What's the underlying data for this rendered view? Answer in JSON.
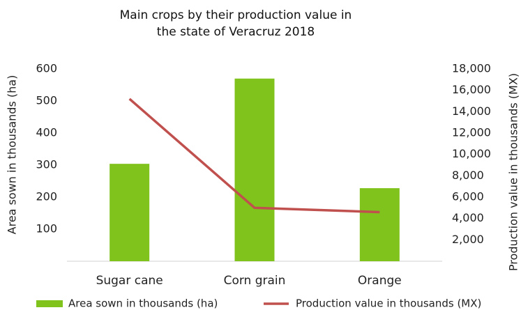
{
  "chart_data": {
    "type": "bar-line",
    "title": "Main crops by their production value in the state of Veracruz 2018",
    "categories": [
      "Sugar cane",
      "Corn grain",
      "Orange"
    ],
    "ylabel": "Area sown in thousands (ha)",
    "y2label": "Production value in thousands (MX)",
    "series": [
      {
        "name": "Area sown in thousands (ha)",
        "type": "bar",
        "color": "#7fc31c",
        "values": [
          304,
          570,
          228
        ]
      },
      {
        "name": "Production value in thousands (MX)",
        "type": "line",
        "axis": "y2",
        "color": "#c0504d",
        "values": [
          15200,
          5000,
          4600
        ]
      }
    ],
    "ylim": [
      0,
      600
    ],
    "yticks": [
      100,
      200,
      300,
      400,
      500,
      600
    ],
    "y2lim": [
      0,
      18000
    ],
    "y2ticks": [
      {
        "value": 2000,
        "label": "2,000"
      },
      {
        "value": 4000,
        "label": "4,000"
      },
      {
        "value": 6000,
        "label": "6,000"
      },
      {
        "value": 8000,
        "label": "8,000"
      },
      {
        "value": 10000,
        "label": "10,000"
      },
      {
        "value": 12000,
        "label": "12,000"
      },
      {
        "value": 14000,
        "label": "14,000"
      },
      {
        "value": 16000,
        "label": "16,000"
      },
      {
        "value": 18000,
        "label": "18,000"
      }
    ],
    "legend": "bottom",
    "grid": false
  }
}
